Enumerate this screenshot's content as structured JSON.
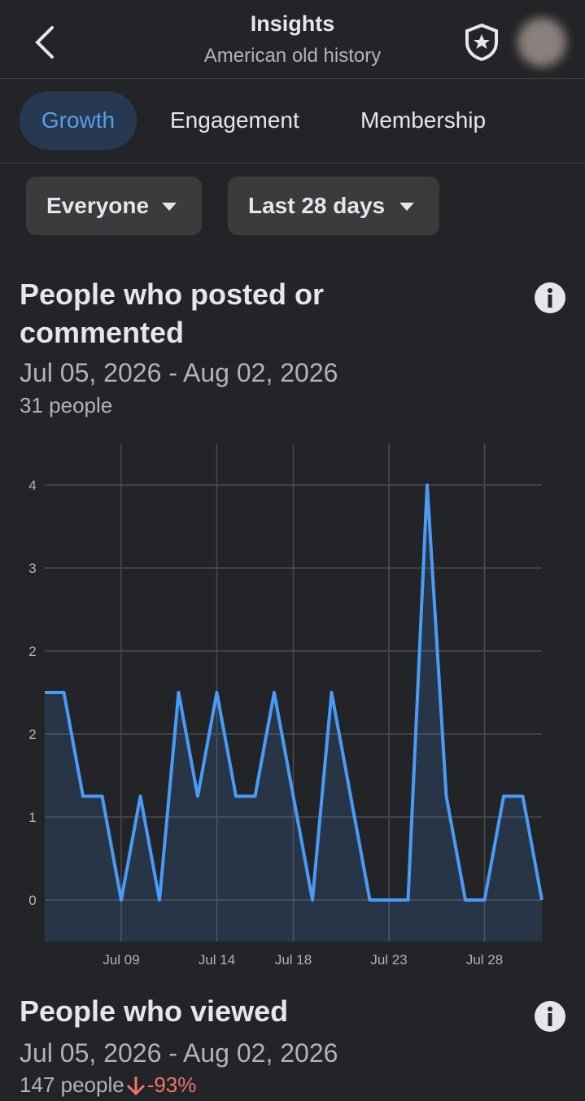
{
  "header": {
    "title": "Insights",
    "subtitle": "American old history"
  },
  "tabs": [
    "Growth",
    "Engagement",
    "Membership"
  ],
  "filters": [
    "Everyone",
    "Last 28 days"
  ],
  "cards": [
    {
      "title": "People who posted or commented",
      "date_range": "Jul 05, 2026 - Aug 02, 2026",
      "summary": "31 people"
    },
    {
      "title": "People who viewed",
      "date_range": "Jul 05, 2026 - Aug 02, 2026",
      "summary": "147 people",
      "change": "-93%"
    }
  ],
  "chart_data": {
    "type": "area",
    "categories": [
      null,
      null,
      null,
      null,
      "Jul 09",
      null,
      null,
      null,
      null,
      "Jul 14",
      null,
      null,
      null,
      "Jul 18",
      null,
      null,
      null,
      null,
      "Jul 23",
      null,
      null,
      null,
      null,
      "Jul 28",
      null,
      null,
      null
    ],
    "series": [
      {
        "color": "#4a9bf5",
        "values": [
          2,
          2,
          1,
          1,
          0,
          1,
          0,
          2,
          1,
          2,
          1,
          1,
          2,
          1,
          0,
          2,
          1,
          0,
          0,
          0,
          4,
          1,
          0,
          0,
          1,
          1,
          0
        ]
      }
    ],
    "ylim": [
      -0.4,
      4.4
    ],
    "yticks": [
      0,
      {
        "value": 0.8,
        "label": "1"
      },
      {
        "value": 1.6,
        "label": "2"
      },
      {
        "value": 2.4,
        "label": "2"
      },
      {
        "value": 3.2,
        "label": "3"
      },
      4
    ],
    "grid": true
  }
}
